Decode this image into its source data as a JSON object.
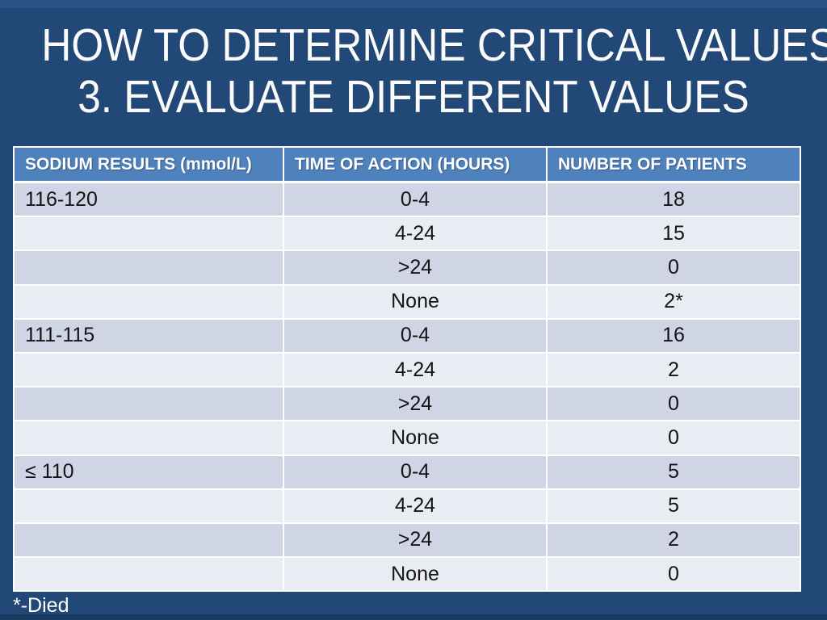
{
  "slide": {
    "title_line1": "HOW TO DETERMINE CRITICAL VALUES",
    "title_line2": "3. EVALUATE DIFFERENT VALUES",
    "footnote": "*-Died"
  },
  "colors": {
    "background": "#214876",
    "background_top_band": "#2B5486",
    "background_bottom_band": "#1A3B62",
    "table_header_bg": "#4F81BD",
    "row_band_dark": "#CFD5E4",
    "row_band_light": "#EAECF4",
    "grid_border": "#FFFFFF",
    "title_text": "#FBFBFB",
    "cell_text": "#141414"
  },
  "table": {
    "headers": [
      "SODIUM RESULTS (mmol/L)",
      "TIME OF ACTION (HOURS)",
      "NUMBER OF PATIENTS"
    ],
    "rows": [
      [
        "116-120",
        "0-4",
        "18"
      ],
      [
        "",
        "4-24",
        "15"
      ],
      [
        "",
        ">24",
        "0"
      ],
      [
        "",
        "None",
        "2*"
      ],
      [
        "111-115",
        "0-4",
        "16"
      ],
      [
        "",
        "4-24",
        "2"
      ],
      [
        "",
        ">24",
        "0"
      ],
      [
        "",
        "None",
        "0"
      ],
      [
        "≤ 110",
        "0-4",
        "5"
      ],
      [
        "",
        "4-24",
        "5"
      ],
      [
        "",
        ">24",
        "2"
      ],
      [
        "",
        "None",
        "0"
      ]
    ]
  }
}
